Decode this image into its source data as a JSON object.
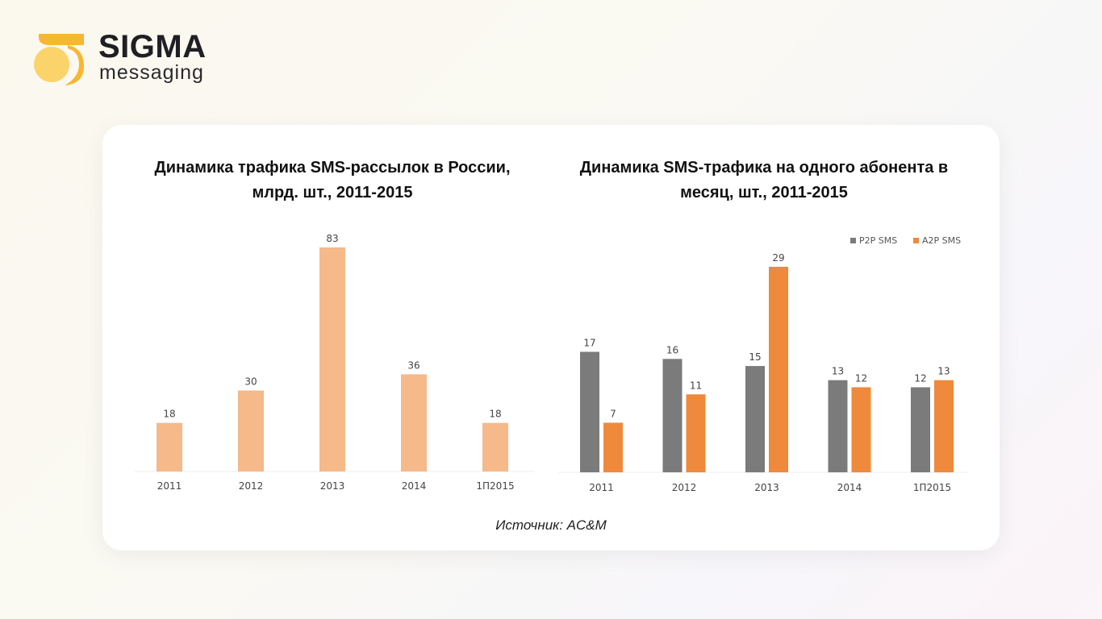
{
  "brand": {
    "name": "SIGMA",
    "subtitle": "messaging",
    "colors": {
      "primary": "#f7b731",
      "light": "#fbd36b"
    }
  },
  "source_label": "Источник: AC&M",
  "chart_data": [
    {
      "type": "bar",
      "title_lines": [
        "Динамика трафика SMS-рассылок в России,",
        "млрд. шт., 2011-2015"
      ],
      "categories": [
        "2011",
        "2012",
        "2013",
        "2014",
        "1П2015"
      ],
      "series": [
        {
          "values": [
            18,
            30,
            83,
            36,
            18
          ],
          "color": "#f5b98a"
        }
      ],
      "ylim": [
        0,
        83
      ],
      "grid": false,
      "data_labels": true
    },
    {
      "type": "bar",
      "title_lines": [
        "Динамика SMS-трафика на одного абонента в",
        "месяц, шт., 2011-2015"
      ],
      "categories": [
        "2011",
        "2012",
        "2013",
        "2014",
        "1П2015"
      ],
      "series": [
        {
          "name": "P2P SMS",
          "values": [
            17,
            16,
            15,
            13,
            12
          ],
          "color": "#7b7b7b"
        },
        {
          "name": "A2P SMS",
          "values": [
            7,
            11,
            29,
            12,
            13
          ],
          "color": "#ef8a3c"
        }
      ],
      "ylim": [
        0,
        29
      ],
      "legend": "top-right",
      "grid": false,
      "data_labels": true
    }
  ]
}
